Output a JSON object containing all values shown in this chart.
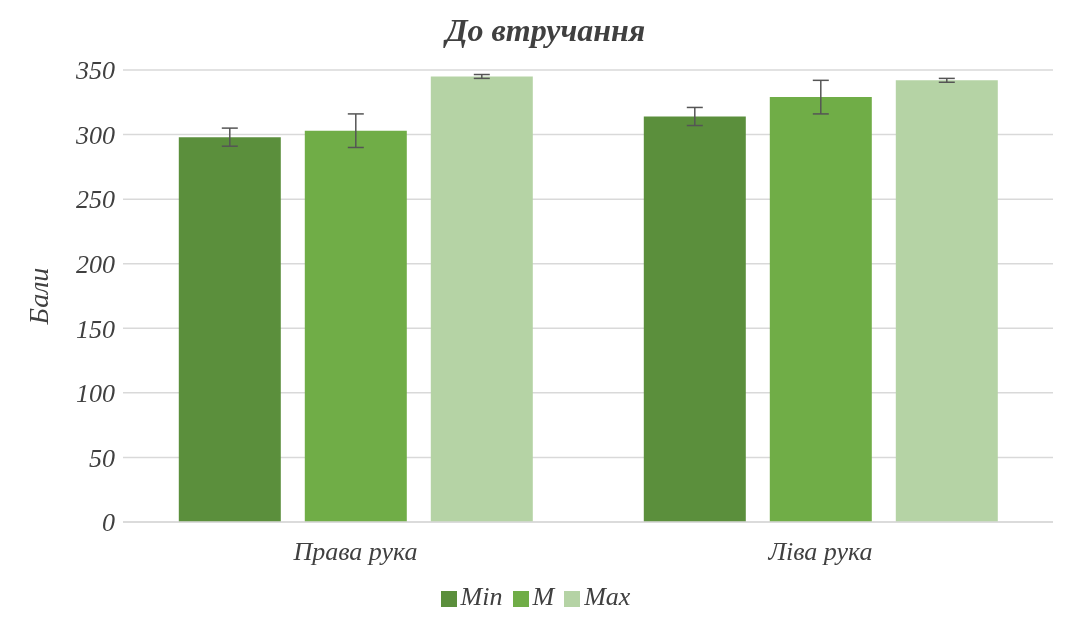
{
  "chart_data": {
    "type": "bar",
    "title": "До втручання",
    "ylabel": "Бали",
    "categories": [
      "Права рука",
      "Ліва рука"
    ],
    "series": [
      {
        "name": "Min",
        "color": "#5b8f3c",
        "values": [
          298,
          314
        ],
        "errors": [
          7,
          7
        ]
      },
      {
        "name": "M",
        "color": "#70ad47",
        "values": [
          303,
          329
        ],
        "errors": [
          13,
          13
        ]
      },
      {
        "name": "Max",
        "color": "#b5d3a5",
        "values": [
          345,
          342
        ],
        "errors": [
          1.5,
          1.5
        ]
      }
    ],
    "ylim": [
      0,
      350
    ],
    "yticks": [
      0,
      50,
      100,
      150,
      200,
      250,
      300,
      350
    ],
    "grid": "y",
    "legend": "bottom"
  }
}
